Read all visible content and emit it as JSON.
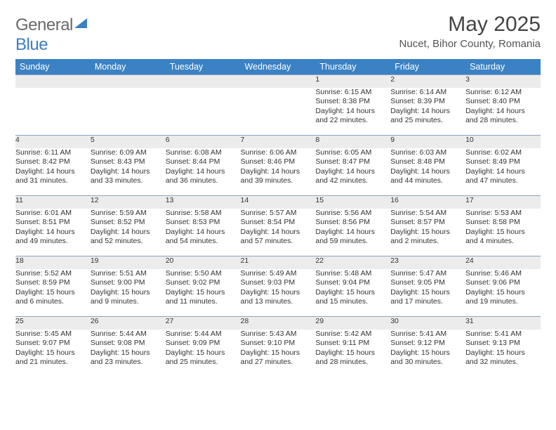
{
  "header": {
    "logo_general": "General",
    "logo_blue": "Blue",
    "month_title": "May 2025",
    "location": "Nucet, Bihor County, Romania"
  },
  "colors": {
    "header_bg": "#3b82c4",
    "daynum_bg": "#ececec",
    "row_border": "#8aa5bf",
    "text": "#333333"
  },
  "weekdays": [
    "Sunday",
    "Monday",
    "Tuesday",
    "Wednesday",
    "Thursday",
    "Friday",
    "Saturday"
  ],
  "weeks": [
    {
      "nums": [
        "",
        "",
        "",
        "",
        "1",
        "2",
        "3"
      ],
      "cells": [
        null,
        null,
        null,
        null,
        {
          "sunrise": "Sunrise: 6:15 AM",
          "sunset": "Sunset: 8:38 PM",
          "d1": "Daylight: 14 hours",
          "d2": "and 22 minutes."
        },
        {
          "sunrise": "Sunrise: 6:14 AM",
          "sunset": "Sunset: 8:39 PM",
          "d1": "Daylight: 14 hours",
          "d2": "and 25 minutes."
        },
        {
          "sunrise": "Sunrise: 6:12 AM",
          "sunset": "Sunset: 8:40 PM",
          "d1": "Daylight: 14 hours",
          "d2": "and 28 minutes."
        }
      ]
    },
    {
      "nums": [
        "4",
        "5",
        "6",
        "7",
        "8",
        "9",
        "10"
      ],
      "cells": [
        {
          "sunrise": "Sunrise: 6:11 AM",
          "sunset": "Sunset: 8:42 PM",
          "d1": "Daylight: 14 hours",
          "d2": "and 31 minutes."
        },
        {
          "sunrise": "Sunrise: 6:09 AM",
          "sunset": "Sunset: 8:43 PM",
          "d1": "Daylight: 14 hours",
          "d2": "and 33 minutes."
        },
        {
          "sunrise": "Sunrise: 6:08 AM",
          "sunset": "Sunset: 8:44 PM",
          "d1": "Daylight: 14 hours",
          "d2": "and 36 minutes."
        },
        {
          "sunrise": "Sunrise: 6:06 AM",
          "sunset": "Sunset: 8:46 PM",
          "d1": "Daylight: 14 hours",
          "d2": "and 39 minutes."
        },
        {
          "sunrise": "Sunrise: 6:05 AM",
          "sunset": "Sunset: 8:47 PM",
          "d1": "Daylight: 14 hours",
          "d2": "and 42 minutes."
        },
        {
          "sunrise": "Sunrise: 6:03 AM",
          "sunset": "Sunset: 8:48 PM",
          "d1": "Daylight: 14 hours",
          "d2": "and 44 minutes."
        },
        {
          "sunrise": "Sunrise: 6:02 AM",
          "sunset": "Sunset: 8:49 PM",
          "d1": "Daylight: 14 hours",
          "d2": "and 47 minutes."
        }
      ]
    },
    {
      "nums": [
        "11",
        "12",
        "13",
        "14",
        "15",
        "16",
        "17"
      ],
      "cells": [
        {
          "sunrise": "Sunrise: 6:01 AM",
          "sunset": "Sunset: 8:51 PM",
          "d1": "Daylight: 14 hours",
          "d2": "and 49 minutes."
        },
        {
          "sunrise": "Sunrise: 5:59 AM",
          "sunset": "Sunset: 8:52 PM",
          "d1": "Daylight: 14 hours",
          "d2": "and 52 minutes."
        },
        {
          "sunrise": "Sunrise: 5:58 AM",
          "sunset": "Sunset: 8:53 PM",
          "d1": "Daylight: 14 hours",
          "d2": "and 54 minutes."
        },
        {
          "sunrise": "Sunrise: 5:57 AM",
          "sunset": "Sunset: 8:54 PM",
          "d1": "Daylight: 14 hours",
          "d2": "and 57 minutes."
        },
        {
          "sunrise": "Sunrise: 5:56 AM",
          "sunset": "Sunset: 8:56 PM",
          "d1": "Daylight: 14 hours",
          "d2": "and 59 minutes."
        },
        {
          "sunrise": "Sunrise: 5:54 AM",
          "sunset": "Sunset: 8:57 PM",
          "d1": "Daylight: 15 hours",
          "d2": "and 2 minutes."
        },
        {
          "sunrise": "Sunrise: 5:53 AM",
          "sunset": "Sunset: 8:58 PM",
          "d1": "Daylight: 15 hours",
          "d2": "and 4 minutes."
        }
      ]
    },
    {
      "nums": [
        "18",
        "19",
        "20",
        "21",
        "22",
        "23",
        "24"
      ],
      "cells": [
        {
          "sunrise": "Sunrise: 5:52 AM",
          "sunset": "Sunset: 8:59 PM",
          "d1": "Daylight: 15 hours",
          "d2": "and 6 minutes."
        },
        {
          "sunrise": "Sunrise: 5:51 AM",
          "sunset": "Sunset: 9:00 PM",
          "d1": "Daylight: 15 hours",
          "d2": "and 9 minutes."
        },
        {
          "sunrise": "Sunrise: 5:50 AM",
          "sunset": "Sunset: 9:02 PM",
          "d1": "Daylight: 15 hours",
          "d2": "and 11 minutes."
        },
        {
          "sunrise": "Sunrise: 5:49 AM",
          "sunset": "Sunset: 9:03 PM",
          "d1": "Daylight: 15 hours",
          "d2": "and 13 minutes."
        },
        {
          "sunrise": "Sunrise: 5:48 AM",
          "sunset": "Sunset: 9:04 PM",
          "d1": "Daylight: 15 hours",
          "d2": "and 15 minutes."
        },
        {
          "sunrise": "Sunrise: 5:47 AM",
          "sunset": "Sunset: 9:05 PM",
          "d1": "Daylight: 15 hours",
          "d2": "and 17 minutes."
        },
        {
          "sunrise": "Sunrise: 5:46 AM",
          "sunset": "Sunset: 9:06 PM",
          "d1": "Daylight: 15 hours",
          "d2": "and 19 minutes."
        }
      ]
    },
    {
      "nums": [
        "25",
        "26",
        "27",
        "28",
        "29",
        "30",
        "31"
      ],
      "cells": [
        {
          "sunrise": "Sunrise: 5:45 AM",
          "sunset": "Sunset: 9:07 PM",
          "d1": "Daylight: 15 hours",
          "d2": "and 21 minutes."
        },
        {
          "sunrise": "Sunrise: 5:44 AM",
          "sunset": "Sunset: 9:08 PM",
          "d1": "Daylight: 15 hours",
          "d2": "and 23 minutes."
        },
        {
          "sunrise": "Sunrise: 5:44 AM",
          "sunset": "Sunset: 9:09 PM",
          "d1": "Daylight: 15 hours",
          "d2": "and 25 minutes."
        },
        {
          "sunrise": "Sunrise: 5:43 AM",
          "sunset": "Sunset: 9:10 PM",
          "d1": "Daylight: 15 hours",
          "d2": "and 27 minutes."
        },
        {
          "sunrise": "Sunrise: 5:42 AM",
          "sunset": "Sunset: 9:11 PM",
          "d1": "Daylight: 15 hours",
          "d2": "and 28 minutes."
        },
        {
          "sunrise": "Sunrise: 5:41 AM",
          "sunset": "Sunset: 9:12 PM",
          "d1": "Daylight: 15 hours",
          "d2": "and 30 minutes."
        },
        {
          "sunrise": "Sunrise: 5:41 AM",
          "sunset": "Sunset: 9:13 PM",
          "d1": "Daylight: 15 hours",
          "d2": "and 32 minutes."
        }
      ]
    }
  ]
}
